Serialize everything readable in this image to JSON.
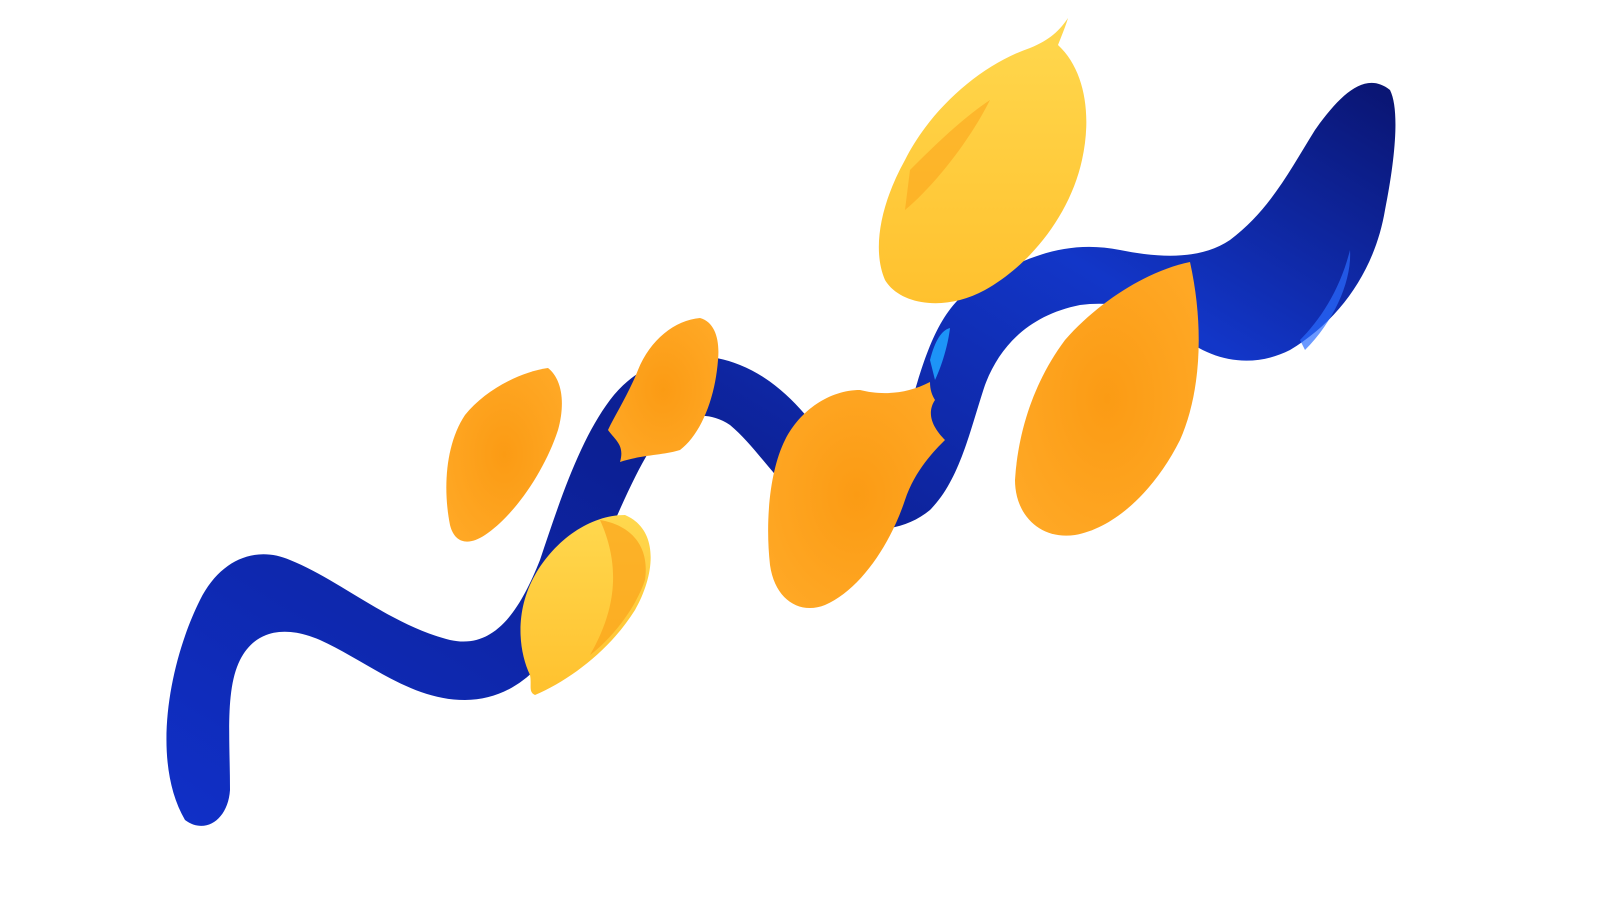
{
  "canvas": {
    "background": "#ffffff"
  },
  "colors": {
    "blue_dark": "#0b1a78",
    "blue_mid": "#1030c8",
    "blue_bright": "#1d4fe0",
    "blue_highlight": "#1fa0ff",
    "orange_deep": "#f58a0f",
    "orange_mid": "#fba21a",
    "yellow_light": "#ffd64a"
  },
  "elements": {
    "stroke": "blue-paint-stroke",
    "blobs": [
      "orange-blob-1",
      "orange-blob-2",
      "orange-blob-3",
      "orange-blob-4",
      "orange-blob-5",
      "orange-blob-6"
    ]
  }
}
